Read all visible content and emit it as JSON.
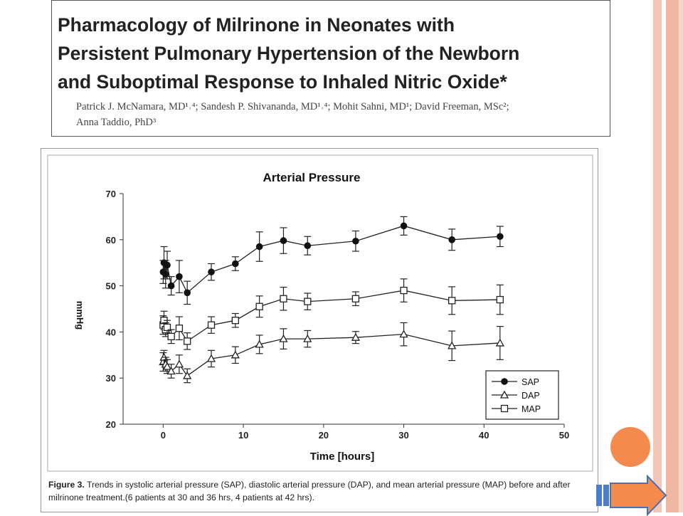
{
  "paper": {
    "title": "Pharmacology of Milrinone in Neonates with Persistent Pulmonary Hypertension of the Newborn and Suboptimal Response to Inhaled Nitric Oxide*",
    "title_line1": "Pharmacology of Milrinone in Neonates with",
    "title_line2": "Persistent Pulmonary Hypertension of the Newborn",
    "title_line3": "and Suboptimal Response to Inhaled Nitric Oxide*",
    "authors_line1": "Patrick J. McNamara, MD¹˒⁴; Sandesh P. Shivananda, MD¹˒⁴; Mohit Sahni, MD¹; David Freeman, MSc²;",
    "authors_line2": "Anna Taddio, PhD³"
  },
  "caption": {
    "label": "Figure 3.",
    "text": " Trends in systolic arterial pressure (SAP), diastolic arterial pressure (DAP), and mean arterial pressure (MAP)  before and after milrinone treatment.(6  patients at 30 and 36 hrs, 4 patients at 42 hrs)."
  },
  "colors": {
    "accent_orange": "#f58a4f",
    "stripe": "#f0b7a3"
  },
  "icons": {
    "prev": "circle-button-icon",
    "next": "right-arrow-icon"
  },
  "chart_data": {
    "type": "line",
    "title": "Arterial Pressure",
    "xlabel": "Time [hours]",
    "ylabel": "mmHg",
    "xlim": [
      -5,
      50
    ],
    "ylim": [
      20,
      70
    ],
    "xticks": [
      0,
      10,
      20,
      30,
      40,
      50
    ],
    "yticks": [
      20,
      30,
      40,
      50,
      60,
      70
    ],
    "grid": false,
    "legend_position": "bottom-right",
    "series": [
      {
        "name": "SAP",
        "marker": "filled-circle",
        "points": [
          {
            "x": 0,
            "y": 53.0,
            "err": 2.5
          },
          {
            "x": 0.1,
            "y": 55.0,
            "err": 3.5
          },
          {
            "x": 0.3,
            "y": 52.5,
            "err": 3.0
          },
          {
            "x": 0.5,
            "y": 54.5,
            "err": 3.0
          },
          {
            "x": 1,
            "y": 50.0,
            "err": 2.0
          },
          {
            "x": 2,
            "y": 52.0,
            "err": 3.5
          },
          {
            "x": 3,
            "y": 48.5,
            "err": 2.5
          },
          {
            "x": 6,
            "y": 53.0,
            "err": 1.8
          },
          {
            "x": 9,
            "y": 54.8,
            "err": 1.5
          },
          {
            "x": 12,
            "y": 58.5,
            "err": 3.2
          },
          {
            "x": 15,
            "y": 59.8,
            "err": 2.8
          },
          {
            "x": 18,
            "y": 58.7,
            "err": 2.0
          },
          {
            "x": 24,
            "y": 59.7,
            "err": 2.2
          },
          {
            "x": 30,
            "y": 63.0,
            "err": 2.0
          },
          {
            "x": 36,
            "y": 60.0,
            "err": 2.3
          },
          {
            "x": 42,
            "y": 60.7,
            "err": 2.2
          }
        ]
      },
      {
        "name": "DAP",
        "marker": "open-triangle",
        "points": [
          {
            "x": 0,
            "y": 33.5,
            "err": 2.0
          },
          {
            "x": 0.1,
            "y": 34.5,
            "err": 1.5
          },
          {
            "x": 0.3,
            "y": 33.0,
            "err": 1.5
          },
          {
            "x": 0.5,
            "y": 32.5,
            "err": 1.5
          },
          {
            "x": 1,
            "y": 31.5,
            "err": 1.5
          },
          {
            "x": 2,
            "y": 33.0,
            "err": 2.0
          },
          {
            "x": 3,
            "y": 30.5,
            "err": 1.5
          },
          {
            "x": 6,
            "y": 34.2,
            "err": 1.8
          },
          {
            "x": 9,
            "y": 35.0,
            "err": 1.8
          },
          {
            "x": 12,
            "y": 37.3,
            "err": 2.0
          },
          {
            "x": 15,
            "y": 38.5,
            "err": 2.2
          },
          {
            "x": 18,
            "y": 38.5,
            "err": 1.8
          },
          {
            "x": 24,
            "y": 38.8,
            "err": 1.3
          },
          {
            "x": 30,
            "y": 39.5,
            "err": 2.5
          },
          {
            "x": 36,
            "y": 37.0,
            "err": 3.2
          },
          {
            "x": 42,
            "y": 37.6,
            "err": 3.6
          }
        ]
      },
      {
        "name": "MAP",
        "marker": "open-square",
        "points": [
          {
            "x": 0,
            "y": 41.5,
            "err": 2.0
          },
          {
            "x": 0.1,
            "y": 42.5,
            "err": 2.0
          },
          {
            "x": 0.3,
            "y": 40.5,
            "err": 1.5
          },
          {
            "x": 0.5,
            "y": 41.0,
            "err": 1.5
          },
          {
            "x": 1,
            "y": 39.0,
            "err": 1.5
          },
          {
            "x": 2,
            "y": 40.8,
            "err": 2.5
          },
          {
            "x": 3,
            "y": 38.0,
            "err": 1.8
          },
          {
            "x": 6,
            "y": 41.5,
            "err": 1.8
          },
          {
            "x": 9,
            "y": 42.5,
            "err": 1.5
          },
          {
            "x": 12,
            "y": 45.5,
            "err": 2.3
          },
          {
            "x": 15,
            "y": 47.2,
            "err": 2.5
          },
          {
            "x": 18,
            "y": 46.6,
            "err": 1.8
          },
          {
            "x": 24,
            "y": 47.2,
            "err": 1.5
          },
          {
            "x": 30,
            "y": 49.0,
            "err": 2.5
          },
          {
            "x": 36,
            "y": 46.8,
            "err": 3.0
          },
          {
            "x": 42,
            "y": 47.0,
            "err": 3.2
          }
        ]
      }
    ]
  }
}
